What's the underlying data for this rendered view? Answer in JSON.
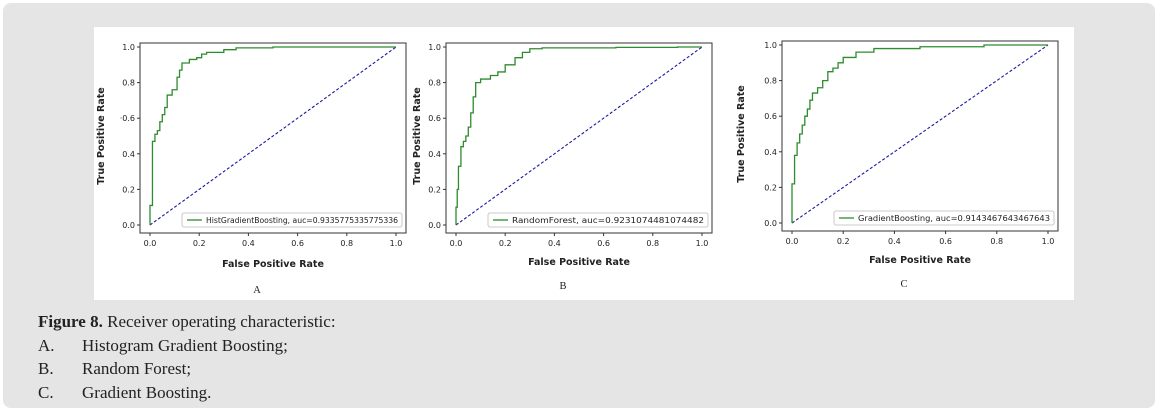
{
  "figure": {
    "panels": [
      {
        "letter": "A",
        "legend": "HistGradientBoosting, auc=0.9335775335775336",
        "ylabel": "True Positive Rate",
        "xlabel": "False Positive Rate",
        "ytick_labels": [
          "0.0",
          "0.2",
          "0.4",
          "·0.6",
          "0.8",
          "1.0"
        ],
        "xtick_labels": [
          "0.0",
          "0.2",
          "0.4",
          "0.6",
          "0.8",
          "1.0"
        ],
        "colors": {
          "roc": "#2e8b2e",
          "diagonal": "#1a1a9e"
        }
      },
      {
        "letter": "B",
        "legend": "RandomForest, auc=0.9231074481074482",
        "ylabel": "True Positive Rate",
        "xlabel": "False Positive Rate",
        "ytick_labels": [
          "0.0",
          "0.2",
          "0.4",
          "0.6",
          "0.8",
          "1.0"
        ],
        "xtick_labels": [
          "0.0",
          "0.2",
          "0.4",
          "0.6",
          "0.8",
          "1.0"
        ],
        "colors": {
          "roc": "#2e8b2e",
          "diagonal": "#1a1a9e"
        }
      },
      {
        "letter": "C",
        "legend": "GradientBoosting, auc=0.9143467643467643",
        "ylabel": "True Positive Rate",
        "xlabel": "False Positive Rate",
        "ytick_labels": [
          "0.0",
          "0.2",
          "0.4",
          "0.6",
          "0.8",
          "1.0"
        ],
        "xtick_labels": [
          "0.0",
          "0.2",
          "0.4",
          "0.6",
          "0.8",
          "1.0"
        ],
        "colors": {
          "roc": "#2e8b2e",
          "diagonal": "#1a1a9e"
        }
      }
    ]
  },
  "chart_data": [
    {
      "type": "line",
      "xlim": [
        0,
        1
      ],
      "ylim": [
        0,
        1
      ],
      "grid": false,
      "legend": "bottom-right",
      "series": [
        {
          "name": "HistGradientBoosting, auc=0.9335775335775336",
          "x": [
            0,
            0,
            0.01,
            0.01,
            0.02,
            0.02,
            0.03,
            0.03,
            0.04,
            0.04,
            0.05,
            0.05,
            0.06,
            0.06,
            0.07,
            0.07,
            0.09,
            0.09,
            0.11,
            0.11,
            0.12,
            0.12,
            0.13,
            0.13,
            0.16,
            0.16,
            0.19,
            0.19,
            0.21,
            0.21,
            0.23,
            0.23,
            0.3,
            0.3,
            0.35,
            0.35,
            0.5,
            0.5,
            1.0
          ],
          "y": [
            0,
            0.11,
            0.11,
            0.47,
            0.47,
            0.51,
            0.51,
            0.53,
            0.53,
            0.58,
            0.58,
            0.62,
            0.62,
            0.66,
            0.66,
            0.73,
            0.73,
            0.76,
            0.76,
            0.83,
            0.83,
            0.87,
            0.87,
            0.91,
            0.91,
            0.93,
            0.93,
            0.94,
            0.94,
            0.96,
            0.96,
            0.97,
            0.97,
            0.985,
            0.985,
            0.995,
            0.995,
            1.0,
            1.0
          ]
        },
        {
          "name": "",
          "x": [
            0,
            1
          ],
          "y": [
            0,
            1
          ]
        }
      ]
    },
    {
      "type": "line",
      "xlim": [
        0,
        1
      ],
      "ylim": [
        0,
        1
      ],
      "grid": false,
      "legend": "bottom-right",
      "series": [
        {
          "name": "RandomForest, auc=0.9231074481074482",
          "x": [
            0,
            0,
            0.005,
            0.005,
            0.01,
            0.01,
            0.02,
            0.02,
            0.03,
            0.03,
            0.04,
            0.04,
            0.05,
            0.05,
            0.06,
            0.06,
            0.07,
            0.07,
            0.08,
            0.08,
            0.1,
            0.1,
            0.14,
            0.14,
            0.17,
            0.17,
            0.2,
            0.2,
            0.24,
            0.24,
            0.27,
            0.27,
            0.3,
            0.3,
            0.35,
            0.35,
            0.65,
            0.65,
            0.9,
            0.9,
            1.0
          ],
          "y": [
            0,
            0.1,
            0.1,
            0.2,
            0.2,
            0.33,
            0.33,
            0.44,
            0.44,
            0.47,
            0.47,
            0.5,
            0.5,
            0.55,
            0.55,
            0.63,
            0.63,
            0.72,
            0.72,
            0.8,
            0.8,
            0.82,
            0.82,
            0.84,
            0.84,
            0.86,
            0.86,
            0.9,
            0.9,
            0.94,
            0.94,
            0.97,
            0.97,
            0.99,
            0.99,
            0.995,
            0.995,
            0.998,
            0.998,
            1.0,
            1.0
          ]
        },
        {
          "name": "",
          "x": [
            0,
            1
          ],
          "y": [
            0,
            1
          ]
        }
      ]
    },
    {
      "type": "line",
      "xlim": [
        0,
        1
      ],
      "ylim": [
        0,
        1
      ],
      "grid": false,
      "legend": "bottom-right",
      "series": [
        {
          "name": "GradientBoosting, auc=0.9143467643467643",
          "x": [
            0,
            0,
            0.01,
            0.01,
            0.02,
            0.02,
            0.03,
            0.03,
            0.04,
            0.04,
            0.05,
            0.05,
            0.06,
            0.06,
            0.07,
            0.07,
            0.08,
            0.08,
            0.1,
            0.1,
            0.12,
            0.12,
            0.14,
            0.14,
            0.16,
            0.16,
            0.18,
            0.18,
            0.2,
            0.2,
            0.25,
            0.25,
            0.32,
            0.32,
            0.5,
            0.5,
            0.75,
            0.75,
            1.0
          ],
          "y": [
            0,
            0.22,
            0.22,
            0.38,
            0.38,
            0.45,
            0.45,
            0.5,
            0.5,
            0.55,
            0.55,
            0.6,
            0.6,
            0.64,
            0.64,
            0.69,
            0.69,
            0.73,
            0.73,
            0.76,
            0.76,
            0.8,
            0.8,
            0.85,
            0.85,
            0.87,
            0.87,
            0.9,
            0.9,
            0.93,
            0.93,
            0.96,
            0.96,
            0.98,
            0.98,
            0.99,
            0.99,
            1.0,
            1.0
          ]
        },
        {
          "name": "",
          "x": [
            0,
            1
          ],
          "y": [
            0,
            1
          ]
        }
      ]
    }
  ],
  "caption": {
    "title_bold": "Figure 8.",
    "title_text": " Receiver operating characteristic:",
    "items": [
      {
        "label": "A.",
        "text": "Histogram Gradient Boosting;"
      },
      {
        "label": "B.",
        "text": "Random Forest;"
      },
      {
        "label": "C.",
        "text": "Gradient Boosting."
      }
    ]
  }
}
